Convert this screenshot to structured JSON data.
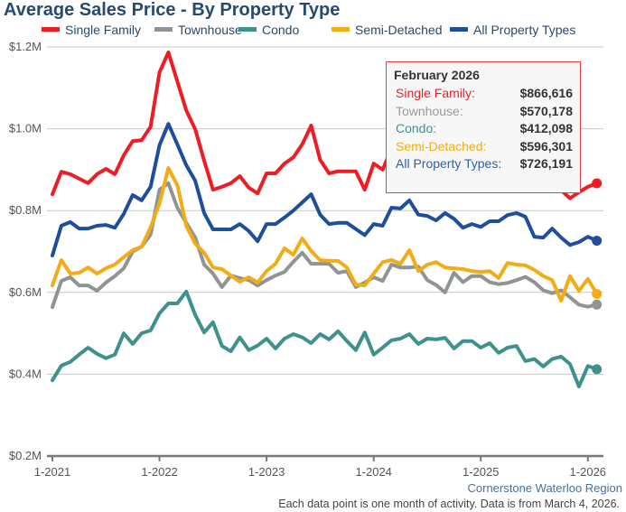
{
  "chart_data": {
    "type": "line",
    "title": "Average Sales Price - By Property Type",
    "x_start": "2021-01",
    "x_end": "2026-02",
    "x_ticks": [
      "1-2021",
      "1-2022",
      "1-2023",
      "1-2024",
      "1-2025",
      "1-2026"
    ],
    "y_ticks": [
      "$0.2M",
      "$0.4M",
      "$0.6M",
      "$0.8M",
      "$1.0M",
      "$1.2M"
    ],
    "y_unit": "$M",
    "ylim": [
      0.2,
      1.2
    ],
    "grid": true,
    "legend_position": "top",
    "series": [
      {
        "name": "Single Family",
        "color": "#ee1c25",
        "values": [
          0.84,
          0.895,
          0.889,
          0.878,
          0.867,
          0.889,
          0.902,
          0.889,
          0.935,
          0.97,
          0.972,
          1.005,
          1.138,
          1.187,
          1.116,
          1.045,
          0.999,
          0.922,
          0.851,
          0.858,
          0.867,
          0.884,
          0.856,
          0.842,
          0.891,
          0.891,
          0.915,
          0.93,
          0.962,
          1.008,
          0.924,
          0.891,
          0.896,
          0.896,
          0.896,
          0.851,
          0.915,
          0.9,
          0.951,
          0.93,
          0.95,
          0.97,
          0.94,
          0.92,
          0.93,
          0.91,
          0.9,
          0.92,
          0.93,
          0.91,
          0.9,
          0.93,
          0.95,
          0.92,
          0.9,
          0.88,
          0.87,
          0.85,
          0.83,
          0.845,
          0.858,
          0.866616
        ]
      },
      {
        "name": "Townhouse",
        "color": "#8f9494",
        "values": [
          0.564,
          0.628,
          0.637,
          0.617,
          0.617,
          0.604,
          0.624,
          0.64,
          0.659,
          0.7,
          0.712,
          0.741,
          0.851,
          0.867,
          0.807,
          0.77,
          0.734,
          0.668,
          0.646,
          0.613,
          0.641,
          0.635,
          0.63,
          0.617,
          0.63,
          0.641,
          0.65,
          0.675,
          0.697,
          0.67,
          0.67,
          0.67,
          0.648,
          0.652,
          0.613,
          0.624,
          0.637,
          0.628,
          0.668,
          0.661,
          0.661,
          0.663,
          0.63,
          0.618,
          0.6,
          0.648,
          0.625,
          0.64,
          0.64,
          0.625,
          0.62,
          0.623,
          0.63,
          0.638,
          0.625,
          0.605,
          0.598,
          0.605,
          0.588,
          0.57,
          0.565,
          0.570178
        ]
      },
      {
        "name": "Condo",
        "color": "#3f918d",
        "values": [
          0.385,
          0.421,
          0.43,
          0.448,
          0.465,
          0.45,
          0.439,
          0.448,
          0.5,
          0.474,
          0.5,
          0.507,
          0.549,
          0.573,
          0.573,
          0.602,
          0.545,
          0.502,
          0.527,
          0.469,
          0.456,
          0.49,
          0.459,
          0.47,
          0.487,
          0.463,
          0.487,
          0.498,
          0.49,
          0.476,
          0.498,
          0.485,
          0.505,
          0.481,
          0.459,
          0.502,
          0.448,
          0.465,
          0.483,
          0.487,
          0.498,
          0.474,
          0.487,
          0.485,
          0.489,
          0.463,
          0.481,
          0.481,
          0.465,
          0.476,
          0.452,
          0.465,
          0.469,
          0.432,
          0.437,
          0.419,
          0.437,
          0.443,
          0.425,
          0.37,
          0.42,
          0.412098
        ]
      },
      {
        "name": "Semi-Detached",
        "color": "#f2ac16",
        "values": [
          0.617,
          0.679,
          0.646,
          0.648,
          0.661,
          0.646,
          0.659,
          0.668,
          0.686,
          0.703,
          0.712,
          0.759,
          0.818,
          0.904,
          0.862,
          0.763,
          0.719,
          0.697,
          0.661,
          0.657,
          0.641,
          0.626,
          0.637,
          0.624,
          0.652,
          0.67,
          0.708,
          0.692,
          0.732,
          0.701,
          0.679,
          0.677,
          0.677,
          0.661,
          0.619,
          0.617,
          0.646,
          0.674,
          0.679,
          0.67,
          0.703,
          0.652,
          0.668,
          0.674,
          0.661,
          0.659,
          0.657,
          0.652,
          0.65,
          0.652,
          0.635,
          0.672,
          0.668,
          0.666,
          0.655,
          0.64,
          0.63,
          0.58,
          0.64,
          0.604,
          0.633,
          0.596301
        ]
      },
      {
        "name": "All Property Types",
        "color": "#1f4f9c",
        "values": [
          0.69,
          0.763,
          0.772,
          0.756,
          0.756,
          0.763,
          0.765,
          0.758,
          0.792,
          0.838,
          0.825,
          0.858,
          0.96,
          1.012,
          0.962,
          0.911,
          0.873,
          0.794,
          0.754,
          0.754,
          0.754,
          0.767,
          0.75,
          0.725,
          0.767,
          0.767,
          0.783,
          0.8,
          0.82,
          0.84,
          0.79,
          0.767,
          0.77,
          0.77,
          0.755,
          0.74,
          0.767,
          0.763,
          0.807,
          0.805,
          0.825,
          0.79,
          0.787,
          0.776,
          0.794,
          0.78,
          0.758,
          0.767,
          0.76,
          0.774,
          0.774,
          0.789,
          0.794,
          0.785,
          0.736,
          0.734,
          0.756,
          0.734,
          0.716,
          0.723,
          0.736,
          0.726191
        ]
      }
    ]
  },
  "tooltip": {
    "header": "February 2026",
    "rows": [
      {
        "label": "Single Family:",
        "value": "$866,616",
        "color": "#ee1c25"
      },
      {
        "label": "Townhouse:",
        "value": "$570,178",
        "color": "#9a9a9a"
      },
      {
        "label": "Condo:",
        "value": "$412,098",
        "color": "#3f918d"
      },
      {
        "label": "Semi-Detached:",
        "value": "$596,301",
        "color": "#f2ac16"
      },
      {
        "label": "All Property Types:",
        "value": "$726,191",
        "color": "#2f5ea8"
      }
    ]
  },
  "credit": "Cornerstone Waterloo Region",
  "note": "Each data point is one month of activity. Data is from March 4, 2026."
}
